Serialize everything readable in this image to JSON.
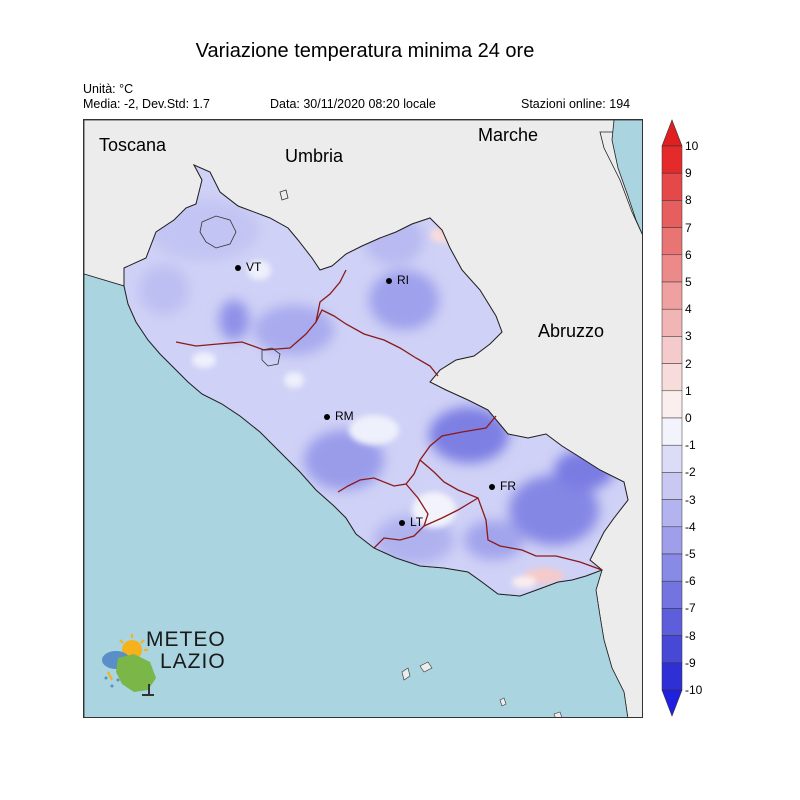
{
  "header": {
    "title": "Variazione temperatura minima 24 ore",
    "unit": "Unità: °C",
    "stats": "Media: -2, Dev.Std: 1.7",
    "date": "Data: 30/11/2020 08:20 locale",
    "stations": "Stazioni online: 194"
  },
  "regions": {
    "toscana": "Toscana",
    "umbria": "Umbria",
    "marche": "Marche",
    "abruzzo": "Abruzzo"
  },
  "cities": {
    "vt": "VT",
    "ri": "RI",
    "rm": "RM",
    "fr": "FR",
    "lt": "LT"
  },
  "legend": {
    "ticks": [
      "10",
      "9",
      "8",
      "7",
      "6",
      "5",
      "4",
      "3",
      "2",
      "1",
      "0",
      "-1",
      "-2",
      "-3",
      "-4",
      "-5",
      "-6",
      "-7",
      "-8",
      "-9",
      "-10"
    ],
    "colors": [
      "#e42a2a",
      "#e44848",
      "#e65e5e",
      "#e97474",
      "#ec8a8a",
      "#efa0a0",
      "#f2b5b5",
      "#f5caca",
      "#f8dcdc",
      "#fbeeee",
      "#f3f3fb",
      "#dcdcf6",
      "#c8c8f3",
      "#b3b3ef",
      "#9e9eeb",
      "#8989e6",
      "#7474e1",
      "#5e5edc",
      "#4848d7",
      "#2f2fd6"
    ]
  },
  "logo": {
    "line1": "METEO",
    "line2": "LAZIO"
  },
  "colors": {
    "sea": "#a9d4e0",
    "land_outside": "#ececec",
    "region_border": "#8b1a1a",
    "field_base": "#cfd1f6"
  }
}
